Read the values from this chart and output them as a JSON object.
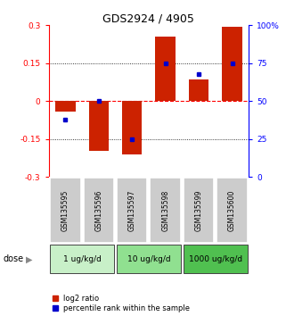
{
  "title": "GDS2924 / 4905",
  "samples": [
    "GSM135595",
    "GSM135596",
    "GSM135597",
    "GSM135598",
    "GSM135599",
    "GSM135600"
  ],
  "log2_ratios": [
    -0.04,
    -0.195,
    -0.21,
    0.255,
    0.085,
    0.295
  ],
  "percentile_ranks": [
    38,
    50,
    25,
    75,
    68,
    75
  ],
  "dose_groups": [
    {
      "label": "1 ug/kg/d",
      "samples": [
        0,
        1
      ],
      "color": "#c8f0c8"
    },
    {
      "label": "10 ug/kg/d",
      "samples": [
        2,
        3
      ],
      "color": "#90e090"
    },
    {
      "label": "1000 ug/kg/d",
      "samples": [
        4,
        5
      ],
      "color": "#50c050"
    }
  ],
  "bar_color": "#cc2200",
  "dot_color": "#0000cc",
  "ylim_left": [
    -0.3,
    0.3
  ],
  "ylim_right": [
    0,
    100
  ],
  "yticks_left": [
    -0.3,
    -0.15,
    0,
    0.15,
    0.3
  ],
  "yticks_right": [
    0,
    25,
    50,
    75,
    100
  ],
  "ytick_labels_left": [
    "-0.3",
    "-0.15",
    "0",
    "0.15",
    "0.3"
  ],
  "ytick_labels_right": [
    "0",
    "25",
    "50",
    "75",
    "100%"
  ],
  "hlines": [
    -0.15,
    0,
    0.15
  ],
  "hline_styles": [
    "dotted",
    "dashed",
    "dotted"
  ],
  "sample_box_color": "#cccccc",
  "legend_red_label": "log2 ratio",
  "legend_blue_label": "percentile rank within the sample",
  "bar_width": 0.6
}
